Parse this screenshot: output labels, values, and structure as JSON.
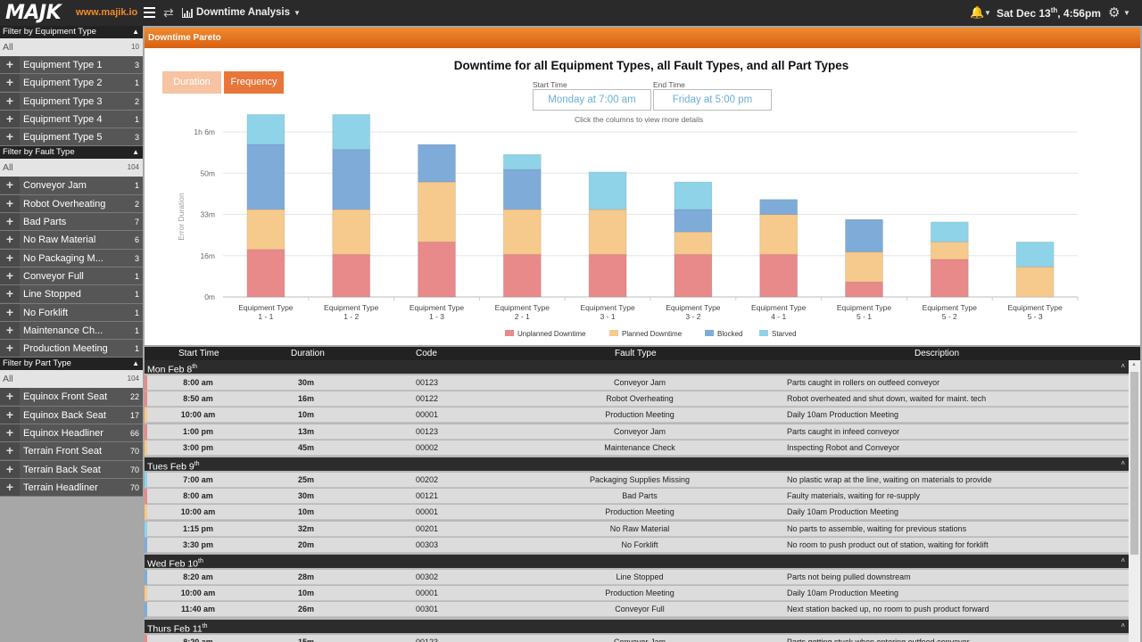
{
  "topbar": {
    "logo": "MAJK",
    "logo_url": "www.majik.io",
    "app_title": "Downtime Analysis",
    "date_text": "Sat Dec 13",
    "date_suffix": "th",
    "time_text": ", 4:56pm"
  },
  "sidebar": {
    "equipment": {
      "header": "Filter by Equipment Type",
      "all_label": "All",
      "all_count": "10",
      "items": [
        {
          "label": "Equipment Type 1",
          "count": "3"
        },
        {
          "label": "Equipment Type 2",
          "count": "1"
        },
        {
          "label": "Equipment Type 3",
          "count": "2"
        },
        {
          "label": "Equipment Type 4",
          "count": "1"
        },
        {
          "label": "Equipment Type 5",
          "count": "3"
        }
      ]
    },
    "fault": {
      "header": "Filter by Fault Type",
      "all_label": "All",
      "all_count": "104",
      "items": [
        {
          "label": "Conveyor Jam",
          "count": "1"
        },
        {
          "label": "Robot Overheating",
          "count": "2"
        },
        {
          "label": "Bad Parts",
          "count": "7"
        },
        {
          "label": "No Raw Material",
          "count": "6"
        },
        {
          "label": "No Packaging M...",
          "count": "3"
        },
        {
          "label": "Conveyor Full",
          "count": "1"
        },
        {
          "label": "Line Stopped",
          "count": "1"
        },
        {
          "label": "No Forklift",
          "count": "1"
        },
        {
          "label": "Maintenance Ch...",
          "count": "1"
        },
        {
          "label": "Production Meeting",
          "count": "1"
        }
      ]
    },
    "part": {
      "header": "Filter by Part Type",
      "all_label": "All",
      "all_count": "104",
      "items": [
        {
          "label": "Equinox Front Seat",
          "count": "22"
        },
        {
          "label": "Equinox Back Seat",
          "count": "17"
        },
        {
          "label": "Equinox Headliner",
          "count": "66"
        },
        {
          "label": "Terrain Front Seat",
          "count": "70"
        },
        {
          "label": "Terrain Back Seat",
          "count": "70"
        },
        {
          "label": "Terrain Headliner",
          "count": "70"
        }
      ]
    }
  },
  "panel": {
    "header": "Downtime Pareto",
    "title": "Downtime for all Equipment Types, all Fault Types, and all Part Types",
    "btn_duration": "Duration",
    "btn_frequency": "Frequency",
    "start_label": "Start Time",
    "start_value": "Monday at 7:00 am",
    "end_label": "End Time",
    "end_value": "Friday at 5:00 pm",
    "hint": "Click the columns to view more details"
  },
  "chart_data": {
    "type": "bar",
    "stacked": true,
    "ylabel": "Error Duration",
    "ytick_labels": [
      "0m",
      "16m",
      "33m",
      "50m",
      "1h 6m"
    ],
    "ytick_values": [
      0,
      16.5,
      33,
      49.5,
      66
    ],
    "ylim": [
      0,
      72
    ],
    "grid": true,
    "legend_position": "bottom",
    "categories": [
      [
        "Equipment Type",
        "1 - 1"
      ],
      [
        "Equipment Type",
        "1 - 2"
      ],
      [
        "Equipment Type",
        "1 - 3"
      ],
      [
        "Equipment Type",
        "2 - 1"
      ],
      [
        "Equipment Type",
        "3 - 1"
      ],
      [
        "Equipment Type",
        "3 - 2"
      ],
      [
        "Equipment Type",
        "4 - 1"
      ],
      [
        "Equipment Type",
        "5 - 1"
      ],
      [
        "Equipment Type",
        "5 - 2"
      ],
      [
        "Equipment Type",
        "5 - 3"
      ]
    ],
    "series": [
      {
        "name": "Unplanned Downtime",
        "color": "#e8898a",
        "values": [
          19,
          17,
          22,
          17,
          17,
          17,
          17,
          6,
          15,
          0
        ]
      },
      {
        "name": "Planned Downtime",
        "color": "#f6c98c",
        "values": [
          16,
          18,
          24,
          18,
          18,
          9,
          16,
          12,
          7,
          12
        ]
      },
      {
        "name": "Blocked",
        "color": "#7fabd9",
        "values": [
          26,
          24,
          15,
          16,
          0,
          9,
          6,
          13,
          0,
          0
        ]
      },
      {
        "name": "Starved",
        "color": "#8fd3e8",
        "values": [
          12,
          14,
          0,
          6,
          15,
          11,
          0,
          0,
          8,
          10
        ]
      }
    ]
  },
  "table": {
    "headers": [
      "Start Time",
      "Duration",
      "Code",
      "Fault Type",
      "Description"
    ],
    "days": [
      {
        "label": "Mon Feb 8",
        "suffix": "th",
        "rows": [
          {
            "start": "8:00 am",
            "duration": "30m",
            "code": "00123",
            "fault": "Conveyor Jam",
            "desc": "Parts caught in rollers on outfeed conveyor",
            "color": "#e88a8a"
          },
          {
            "start": "8:50 am",
            "duration": "16m",
            "code": "00122",
            "fault": "Robot Overheating",
            "desc": "Robot overheated and shut down, waited for maint. tech",
            "color": "#e88a8a"
          },
          {
            "start": "10:00 am",
            "duration": "10m",
            "code": "00001",
            "fault": "Production Meeting",
            "desc": "Daily 10am Production Meeting",
            "color": "#f6c98c"
          },
          {
            "start": "1:00 pm",
            "duration": "13m",
            "code": "00123",
            "fault": "Conveyor Jam",
            "desc": "Parts caught in infeed conveyor",
            "color": "#e88a8a"
          },
          {
            "start": "3:00 pm",
            "duration": "45m",
            "code": "00002",
            "fault": "Maintenance Check",
            "desc": "Inspecting Robot and Conveyor",
            "color": "#f6c98c"
          }
        ]
      },
      {
        "label": "Tues Feb 9",
        "suffix": "th",
        "rows": [
          {
            "start": "7:00 am",
            "duration": "25m",
            "code": "00202",
            "fault": "Packaging Supplies Missing",
            "desc": "No plastic wrap at the line, waiting on materials to provide",
            "color": "#8fd3e8"
          },
          {
            "start": "8:00 am",
            "duration": "30m",
            "code": "00121",
            "fault": "Bad Parts",
            "desc": "Faulty materials, waiting for re-supply",
            "color": "#e88a8a"
          },
          {
            "start": "10:00 am",
            "duration": "10m",
            "code": "00001",
            "fault": "Production Meeting",
            "desc": "Daily 10am Production Meeting",
            "color": "#f6c98c"
          },
          {
            "start": "1:15 pm",
            "duration": "32m",
            "code": "00201",
            "fault": "No Raw Material",
            "desc": "No parts to assemble, waiting for previous stations",
            "color": "#8fd3e8"
          },
          {
            "start": "3:30 pm",
            "duration": "20m",
            "code": "00303",
            "fault": "No Forklift",
            "desc": "No room to push product out of station, waiting for forklift",
            "color": "#7fabd9"
          }
        ]
      },
      {
        "label": "Wed Feb 10",
        "suffix": "th",
        "rows": [
          {
            "start": "8:20 am",
            "duration": "28m",
            "code": "00302",
            "fault": "Line Stopped",
            "desc": "Parts not being pulled downstream",
            "color": "#7fabd9"
          },
          {
            "start": "10:00 am",
            "duration": "10m",
            "code": "00001",
            "fault": "Production Meeting",
            "desc": "Daily 10am Production Meeting",
            "color": "#f6c98c"
          },
          {
            "start": "11:40 am",
            "duration": "26m",
            "code": "00301",
            "fault": "Conveyor Full",
            "desc": "Next station backed up, no room to push product forward",
            "color": "#7fabd9"
          }
        ]
      },
      {
        "label": "Thurs Feb 11",
        "suffix": "th",
        "rows": [
          {
            "start": "8:20 am",
            "duration": "15m",
            "code": "00123",
            "fault": "Conveyor Jam",
            "desc": "Parts getting stuck when entering outfeed conveyor",
            "color": "#e88a8a"
          }
        ]
      }
    ]
  }
}
